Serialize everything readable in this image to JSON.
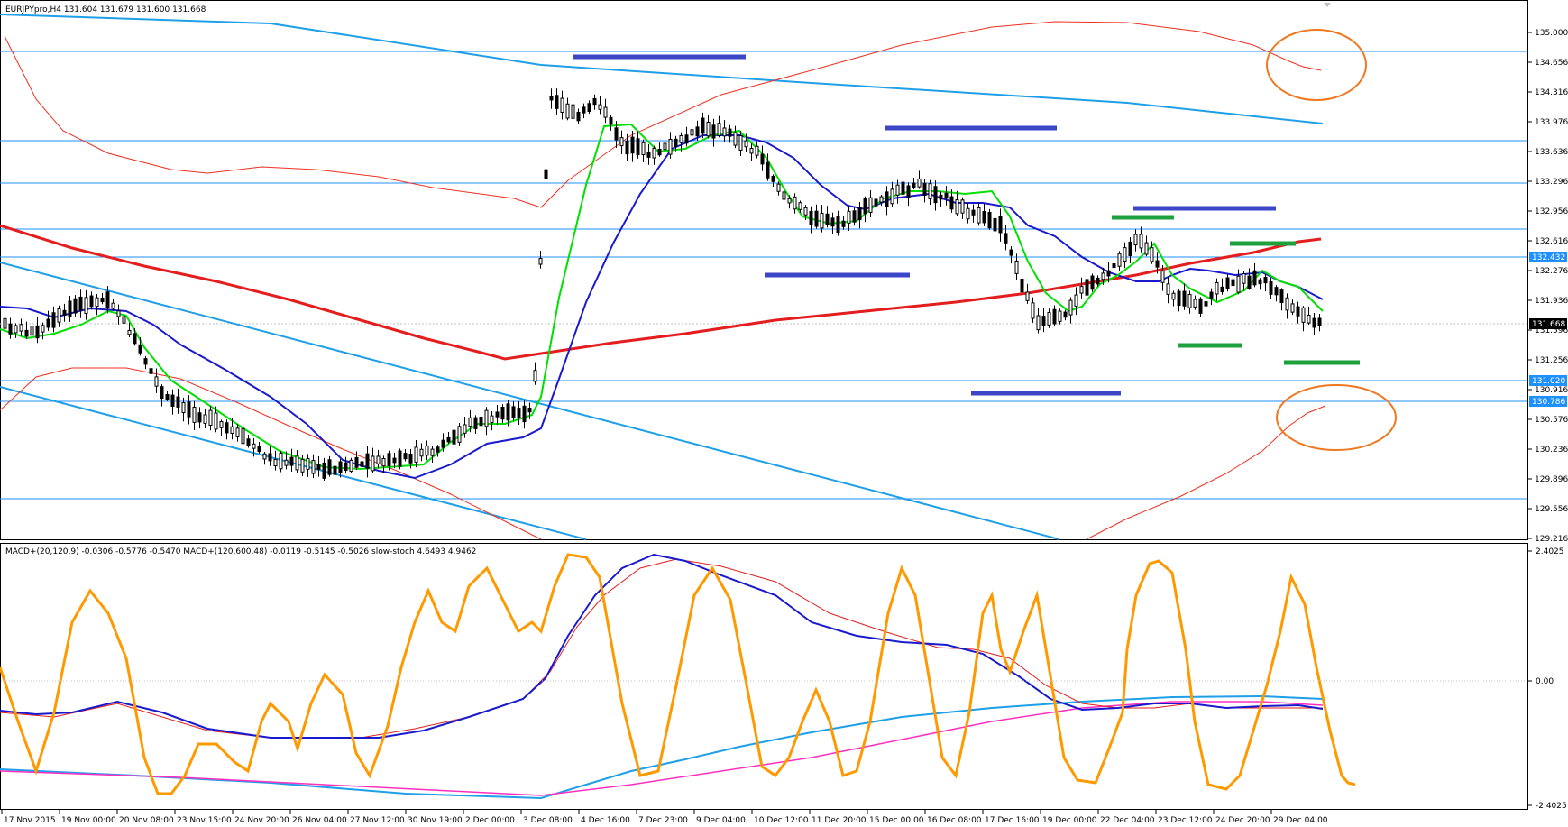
{
  "header": {
    "main_title": "EURJPYpro,H4  131.604 131.679 131.600 131.668",
    "sub_title": "MACD+(20,120,9) -0.0306 -0.5776 -0.5470  MACD+(120,600,48) -0.0119 -0.5145 -0.5026  slow-stoch 4.6493 4.9462"
  },
  "price_axis": {
    "ticks": [
      "135.000",
      "134.656",
      "134.316",
      "133.976",
      "133.636",
      "133.296",
      "132.956",
      "132.616",
      "132.276",
      "131.936",
      "131.596",
      "131.256",
      "130.916",
      "130.576",
      "130.236",
      "129.896",
      "129.556",
      "129.216"
    ],
    "tags": [
      {
        "text": "132.432",
        "color": "#1e90ff"
      },
      {
        "text": "131.668",
        "color": "#000000"
      },
      {
        "text": "131.020",
        "color": "#1e90ff"
      },
      {
        "text": "130.786",
        "color": "#1e90ff"
      }
    ]
  },
  "sub_axis": {
    "ticks": [
      "2.4025",
      "0.00",
      "-2.4025"
    ]
  },
  "time_axis": {
    "labels": [
      "17 Nov 2015",
      "19 Nov 00:00",
      "20 Nov 08:00",
      "23 Nov 15:00",
      "24 Nov 20:00",
      "26 Nov 04:00",
      "27 Nov 12:00",
      "30 Nov 19:00",
      "2 Dec 00:00",
      "3 Dec 08:00",
      "4 Dec 16:00",
      "7 Dec 23:00",
      "9 Dec 04:00",
      "10 Dec 12:00",
      "11 Dec 20:00",
      "15 Dec 00:00",
      "16 Dec 08:00",
      "17 Dec 16:00",
      "19 Dec 00:00",
      "22 Dec 04:00",
      "23 Dec 12:00",
      "24 Dec 20:00",
      "29 Dec 04:00"
    ]
  },
  "colors": {
    "hline": "#1e90ff",
    "trend": "#1e9fe8",
    "ma_red": "#e41e1e",
    "ma_blue": "#1a1acd",
    "ma_green": "#00e000",
    "band_red": "#f03020",
    "level_blue": "#3c46c8",
    "level_green": "#1ea03c",
    "circle": "#f07820",
    "stoch": "#ff9900",
    "magenta": "#ff30c0"
  }
}
